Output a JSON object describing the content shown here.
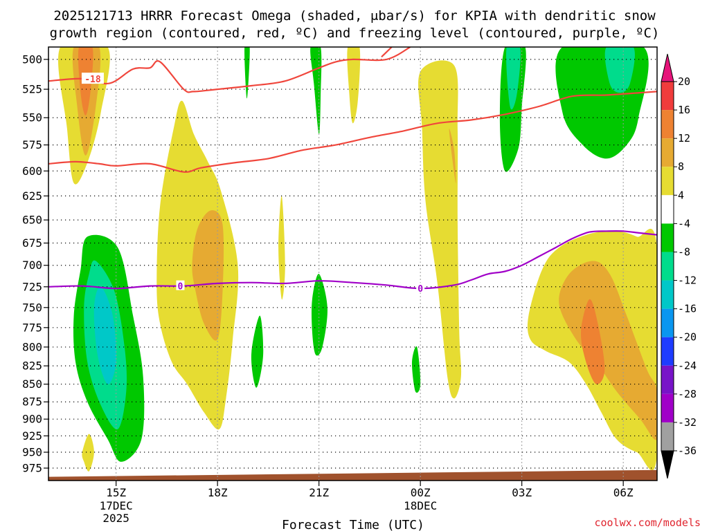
{
  "chart_data": {
    "type": "heatmap",
    "title_line1": "2025121713 HRRR Forecast Omega (shaded, μbar/s) for KPIA with dendritic snow",
    "title_line2": "growth region (contoured, red, ºC) and freezing level (contoured, purple, ºC)",
    "xlabel": "Forecast Time (UTC)",
    "x_axis": {
      "range_hours": [
        13.0,
        31.0
      ],
      "ticks": [
        {
          "hour": 15,
          "label": "15Z",
          "sub1": "17DEC",
          "sub2": "2025"
        },
        {
          "hour": 18,
          "label": "18Z",
          "sub1": "",
          "sub2": ""
        },
        {
          "hour": 21,
          "label": "21Z",
          "sub1": "",
          "sub2": ""
        },
        {
          "hour": 24,
          "label": "00Z",
          "sub1": "18DEC",
          "sub2": ""
        },
        {
          "hour": 27,
          "label": "03Z",
          "sub1": "",
          "sub2": ""
        },
        {
          "hour": 30,
          "label": "06Z",
          "sub1": "",
          "sub2": ""
        }
      ]
    },
    "y_axis": {
      "unit": "mb",
      "range": [
        490,
        995
      ],
      "ticks": [
        500,
        525,
        550,
        575,
        600,
        625,
        650,
        675,
        700,
        725,
        750,
        775,
        800,
        825,
        850,
        875,
        900,
        925,
        950,
        975
      ]
    },
    "colorbar": {
      "labels": [
        "20",
        "16",
        "12",
        "8",
        "4",
        "-4",
        "-8",
        "-12",
        "-16",
        "-20",
        "-24",
        "-28",
        "-32",
        "-36"
      ],
      "bins": [
        {
          "from": 16,
          "to": 20,
          "color": "#f03c3c"
        },
        {
          "from": 12,
          "to": 16,
          "color": "#ee8232"
        },
        {
          "from": 8,
          "to": 12,
          "color": "#e6aa32"
        },
        {
          "from": 4,
          "to": 8,
          "color": "#e6dc32"
        },
        {
          "from": -4,
          "to": 4,
          "color": "#ffffff"
        },
        {
          "from": -8,
          "to": -4,
          "color": "#00c800"
        },
        {
          "from": -12,
          "to": -8,
          "color": "#00dc8c"
        },
        {
          "from": -16,
          "to": -12,
          "color": "#00c8c8"
        },
        {
          "from": -20,
          "to": -16,
          "color": "#0a96f0"
        },
        {
          "from": -24,
          "to": -20,
          "color": "#1e3cff"
        },
        {
          "from": -28,
          "to": -24,
          "color": "#7814c8"
        },
        {
          "from": -32,
          "to": -28,
          "color": "#a000c8"
        },
        {
          "from": -36,
          "to": -32,
          "color": "#a0a0a0"
        }
      ],
      "above_color": "#e6147a",
      "below_color": "#000000"
    },
    "omega_regions": [
      {
        "value": 6,
        "points": [
          [
            13.35,
            490
          ],
          [
            13.55,
            560
          ],
          [
            13.75,
            612
          ],
          [
            14.15,
            592
          ],
          [
            14.55,
            545
          ],
          [
            14.75,
            490
          ]
        ]
      },
      {
        "value": 10,
        "points": [
          [
            13.75,
            490
          ],
          [
            13.85,
            540
          ],
          [
            14.1,
            585
          ],
          [
            14.4,
            540
          ],
          [
            14.5,
            490
          ]
        ]
      },
      {
        "value": 14,
        "points": [
          [
            13.9,
            490
          ],
          [
            13.95,
            528
          ],
          [
            14.1,
            548
          ],
          [
            14.25,
            525
          ],
          [
            14.3,
            490
          ]
        ]
      },
      {
        "value": -6,
        "points": [
          [
            13.75,
            760
          ],
          [
            13.95,
            705
          ],
          [
            14.15,
            668
          ],
          [
            15.05,
            680
          ],
          [
            15.5,
            760
          ],
          [
            15.8,
            840
          ],
          [
            15.75,
            930
          ],
          [
            15.15,
            965
          ],
          [
            14.75,
            930
          ],
          [
            14.15,
            875
          ],
          [
            13.8,
            820
          ]
        ]
      },
      {
        "value": -10,
        "points": [
          [
            14.05,
            750
          ],
          [
            14.2,
            710
          ],
          [
            14.4,
            695
          ],
          [
            14.95,
            730
          ],
          [
            15.25,
            800
          ],
          [
            15.3,
            860
          ],
          [
            15.05,
            915
          ],
          [
            14.55,
            880
          ],
          [
            14.15,
            820
          ]
        ]
      },
      {
        "value": -14,
        "points": [
          [
            14.35,
            750
          ],
          [
            14.55,
            725
          ],
          [
            14.9,
            760
          ],
          [
            15.0,
            820
          ],
          [
            14.75,
            850
          ],
          [
            14.45,
            810
          ]
        ]
      },
      {
        "value": 6,
        "points": [
          [
            14.0,
            950
          ],
          [
            14.2,
            922
          ],
          [
            14.35,
            950
          ],
          [
            14.2,
            980
          ],
          [
            14.05,
            965
          ]
        ]
      },
      {
        "value": 6,
        "points": [
          [
            16.2,
            720
          ],
          [
            16.3,
            635
          ],
          [
            16.7,
            560
          ],
          [
            16.95,
            535
          ],
          [
            17.3,
            565
          ],
          [
            17.7,
            590
          ],
          [
            18.1,
            620
          ],
          [
            18.6,
            700
          ],
          [
            18.45,
            790
          ],
          [
            18.25,
            870
          ],
          [
            18.05,
            915
          ],
          [
            17.6,
            890
          ],
          [
            17.1,
            850
          ],
          [
            16.65,
            820
          ],
          [
            16.3,
            770
          ]
        ]
      },
      {
        "value": 10,
        "points": [
          [
            17.25,
            700
          ],
          [
            17.4,
            660
          ],
          [
            17.8,
            640
          ],
          [
            18.15,
            655
          ],
          [
            18.15,
            730
          ],
          [
            18.0,
            790
          ],
          [
            17.6,
            770
          ],
          [
            17.35,
            730
          ]
        ]
      },
      {
        "value": -6,
        "points": [
          [
            19.0,
            810
          ],
          [
            19.25,
            760
          ],
          [
            19.35,
            810
          ],
          [
            19.15,
            855
          ]
        ]
      },
      {
        "value": 6,
        "points": [
          [
            19.8,
            680
          ],
          [
            19.9,
            625
          ],
          [
            20.0,
            700
          ],
          [
            19.9,
            740
          ]
        ]
      },
      {
        "value": -6,
        "points": [
          [
            18.8,
            490
          ],
          [
            18.95,
            490
          ],
          [
            18.9,
            525
          ],
          [
            18.85,
            530
          ]
        ]
      },
      {
        "value": -6,
        "points": [
          [
            20.75,
            490
          ],
          [
            21.05,
            490
          ],
          [
            21.05,
            530
          ],
          [
            21.0,
            565
          ],
          [
            20.85,
            520
          ]
        ]
      },
      {
        "value": -6,
        "points": [
          [
            20.8,
            740
          ],
          [
            21.0,
            710
          ],
          [
            21.25,
            750
          ],
          [
            21.1,
            800
          ],
          [
            20.9,
            810
          ],
          [
            20.8,
            780
          ]
        ]
      },
      {
        "value": 6,
        "points": [
          [
            21.85,
            490
          ],
          [
            22.2,
            490
          ],
          [
            22.15,
            535
          ],
          [
            22.0,
            555
          ],
          [
            21.9,
            530
          ]
        ]
      },
      {
        "value": -6,
        "points": [
          [
            23.75,
            820
          ],
          [
            23.9,
            800
          ],
          [
            24.0,
            850
          ],
          [
            23.85,
            860
          ]
        ]
      },
      {
        "value": 6,
        "points": [
          [
            24.0,
            510
          ],
          [
            25.0,
            505
          ],
          [
            25.1,
            560
          ],
          [
            25.1,
            650
          ],
          [
            25.15,
            780
          ],
          [
            25.2,
            840
          ],
          [
            25.0,
            870
          ],
          [
            24.8,
            840
          ],
          [
            24.5,
            720
          ],
          [
            24.15,
            630
          ],
          [
            24.05,
            560
          ]
        ]
      },
      {
        "value": 10,
        "points": [
          [
            24.85,
            560
          ],
          [
            25.0,
            580
          ],
          [
            25.05,
            612
          ],
          [
            24.95,
            590
          ]
        ]
      },
      {
        "value": -6,
        "points": [
          [
            26.5,
            490
          ],
          [
            27.1,
            490
          ],
          [
            27.0,
            540
          ],
          [
            26.9,
            578
          ],
          [
            26.5,
            600
          ],
          [
            26.35,
            550
          ]
        ]
      },
      {
        "value": -10,
        "points": [
          [
            26.55,
            490
          ],
          [
            26.95,
            490
          ],
          [
            26.85,
            530
          ],
          [
            26.65,
            540
          ]
        ]
      },
      {
        "value": -6,
        "points": [
          [
            28.2,
            490
          ],
          [
            30.6,
            490
          ],
          [
            30.45,
            550
          ],
          [
            30.1,
            575
          ],
          [
            29.5,
            588
          ],
          [
            28.8,
            575
          ],
          [
            28.2,
            545
          ]
        ]
      },
      {
        "value": -10,
        "points": [
          [
            29.5,
            490
          ],
          [
            30.3,
            490
          ],
          [
            30.2,
            520
          ],
          [
            29.9,
            528
          ],
          [
            29.6,
            520
          ]
        ]
      },
      {
        "value": 6,
        "points": [
          [
            27.2,
            760
          ],
          [
            27.6,
            705
          ],
          [
            28.1,
            680
          ],
          [
            29.0,
            665
          ],
          [
            29.8,
            662
          ],
          [
            30.4,
            668
          ],
          [
            31.0,
            680
          ],
          [
            31.0,
            955
          ],
          [
            30.4,
            950
          ],
          [
            29.8,
            930
          ],
          [
            29.35,
            890
          ],
          [
            28.9,
            850
          ],
          [
            28.4,
            820
          ],
          [
            27.7,
            805
          ],
          [
            27.25,
            790
          ]
        ]
      },
      {
        "value": 10,
        "points": [
          [
            28.1,
            745
          ],
          [
            28.4,
            710
          ],
          [
            29.1,
            695
          ],
          [
            29.6,
            710
          ],
          [
            30.1,
            760
          ],
          [
            30.7,
            830
          ],
          [
            31.0,
            860
          ],
          [
            31.0,
            930
          ],
          [
            30.5,
            900
          ],
          [
            29.8,
            860
          ],
          [
            29.2,
            820
          ],
          [
            28.6,
            790
          ]
        ]
      },
      {
        "value": 14,
        "points": [
          [
            28.75,
            780
          ],
          [
            29.0,
            740
          ],
          [
            29.25,
            770
          ],
          [
            29.45,
            830
          ],
          [
            29.2,
            850
          ],
          [
            28.9,
            820
          ]
        ]
      }
    ],
    "dendritic_contours": [
      {
        "label": "-18",
        "label_hour": 13.9,
        "points": [
          [
            13,
            518
          ],
          [
            14,
            516
          ],
          [
            14.8,
            520
          ],
          [
            15.5,
            508
          ],
          [
            16.0,
            507
          ],
          [
            16.3,
            502
          ],
          [
            17.0,
            525
          ],
          [
            17.3,
            527
          ],
          [
            18,
            525
          ],
          [
            19,
            522
          ],
          [
            20,
            518
          ],
          [
            21,
            507
          ],
          [
            21.5,
            502
          ],
          [
            22,
            500
          ],
          [
            23,
            500
          ],
          [
            23.7,
            490
          ]
        ]
      },
      {
        "label": "",
        "label_hour": null,
        "points": [
          [
            13,
            593
          ],
          [
            13.8,
            591
          ],
          [
            14.5,
            593
          ],
          [
            15,
            595
          ],
          [
            16,
            593
          ],
          [
            17,
            601
          ],
          [
            17.5,
            597
          ],
          [
            18.5,
            592
          ],
          [
            19.5,
            588
          ],
          [
            20.5,
            580
          ],
          [
            21.5,
            575
          ],
          [
            22.5,
            568
          ],
          [
            23.5,
            562
          ],
          [
            24.5,
            555
          ],
          [
            25.5,
            552
          ],
          [
            26.5,
            547
          ],
          [
            27.5,
            540
          ],
          [
            28.5,
            531
          ],
          [
            29.5,
            530
          ],
          [
            30.5,
            528
          ],
          [
            31,
            527
          ]
        ]
      },
      {
        "label": "",
        "label_hour": null,
        "points": [
          [
            22.85,
            498
          ],
          [
            23.15,
            490
          ]
        ]
      }
    ],
    "freezing_level": {
      "label": "0",
      "label_hours": [
        16.9,
        24.0
      ],
      "points": [
        [
          13,
          725
        ],
        [
          14.0,
          724
        ],
        [
          15.0,
          727
        ],
        [
          16.0,
          724
        ],
        [
          17.0,
          724
        ],
        [
          18.0,
          721
        ],
        [
          19.0,
          720
        ],
        [
          20.0,
          721
        ],
        [
          21.0,
          718
        ],
        [
          22.0,
          720
        ],
        [
          23.0,
          723
        ],
        [
          24.0,
          727
        ],
        [
          25.0,
          723
        ],
        [
          25.5,
          717
        ],
        [
          26.0,
          710
        ],
        [
          26.5,
          707
        ],
        [
          27.0,
          700
        ],
        [
          27.5,
          690
        ],
        [
          28.0,
          680
        ],
        [
          28.5,
          670
        ],
        [
          29.0,
          663
        ],
        [
          29.5,
          662
        ],
        [
          30.0,
          662
        ],
        [
          30.5,
          664
        ],
        [
          31.0,
          666
        ]
      ]
    },
    "terrain": {
      "hour_start": 13.0,
      "hour_end": 31.0,
      "pressure_start": 989,
      "pressure_end": 978,
      "color": "#a0522d"
    },
    "credit": "coolwx.com/models"
  }
}
